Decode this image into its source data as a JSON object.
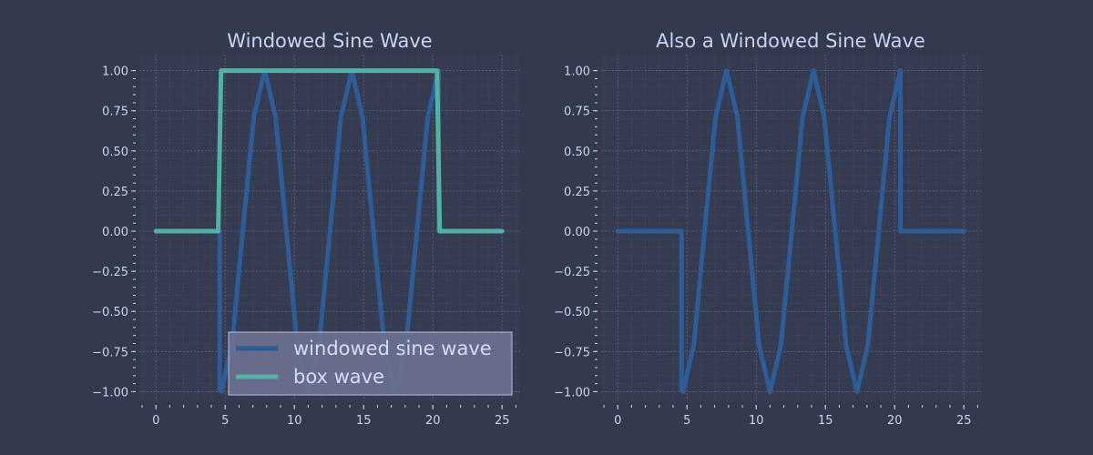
{
  "figure": {
    "background": "#343a4e",
    "plot_background": "#353b50"
  },
  "chart_data": [
    {
      "type": "line",
      "title": "Windowed Sine Wave",
      "xlabel": "",
      "ylabel": "",
      "xlim": [
        -1.2,
        26.3
      ],
      "ylim": [
        -1.06,
        1.1
      ],
      "xticks": [
        0,
        5,
        10,
        15,
        20,
        25
      ],
      "xtick_labels": [
        "0",
        "5",
        "10",
        "15",
        "20",
        "25"
      ],
      "yticks": [
        1.0,
        0.75,
        0.5,
        0.25,
        0.0,
        -0.25,
        -0.5,
        -0.75,
        -1.0
      ],
      "ytick_labels": [
        "1.00",
        "0.75",
        "0.50",
        "0.25",
        "0.00",
        "−0.25",
        "−0.50",
        "−0.75",
        "−1.00"
      ],
      "grid": true,
      "legend": "lower-right",
      "series": [
        {
          "name": "windowed sine wave",
          "color": "#2e5c97",
          "x": [
            0,
            4.6,
            4.6,
            4.7,
            5.49,
            6.27,
            7.06,
            7.85,
            8.64,
            9.42,
            10.21,
            11.0,
            11.78,
            12.57,
            13.35,
            14.14,
            14.92,
            15.71,
            16.49,
            17.28,
            18.06,
            18.85,
            19.63,
            20.42,
            20.42,
            25
          ],
          "y": [
            0,
            0,
            -0.99,
            -1.0,
            -0.71,
            0.0,
            0.71,
            1.0,
            0.71,
            0.0,
            -0.71,
            -1.0,
            -0.71,
            0.0,
            0.71,
            1.0,
            0.71,
            0.0,
            -0.71,
            -1.0,
            -0.71,
            0.0,
            0.71,
            1.0,
            0,
            0
          ]
        },
        {
          "name": "box wave",
          "color": "#4fb3a4",
          "x": [
            0,
            4.5,
            4.7,
            20.3,
            20.5,
            25
          ],
          "y": [
            0,
            0,
            1,
            1,
            0,
            0
          ]
        }
      ]
    },
    {
      "type": "line",
      "title": "Also a Windowed Sine Wave",
      "xlabel": "",
      "ylabel": "",
      "xlim": [
        -1.2,
        26.3
      ],
      "ylim": [
        -1.06,
        1.1
      ],
      "xticks": [
        0,
        5,
        10,
        15,
        20,
        25
      ],
      "xtick_labels": [
        "0",
        "5",
        "10",
        "15",
        "20",
        "25"
      ],
      "yticks": [
        1.0,
        0.75,
        0.5,
        0.25,
        0.0,
        -0.25,
        -0.5,
        -0.75,
        -1.0
      ],
      "ytick_labels": [
        "1.00",
        "0.75",
        "0.50",
        "0.25",
        "0.00",
        "−0.25",
        "−0.50",
        "−0.75",
        "−1.00"
      ],
      "grid": true,
      "series": [
        {
          "color": "#2e5c97",
          "x": [
            0,
            4.6,
            4.6,
            4.7,
            5.49,
            6.27,
            7.06,
            7.85,
            8.64,
            9.42,
            10.21,
            11.0,
            11.78,
            12.57,
            13.35,
            14.14,
            14.92,
            15.71,
            16.49,
            17.28,
            18.06,
            18.85,
            19.63,
            20.42,
            20.42,
            25
          ],
          "y": [
            0,
            0,
            -0.99,
            -1.0,
            -0.71,
            0.0,
            0.71,
            1.0,
            0.71,
            0.0,
            -0.71,
            -1.0,
            -0.71,
            0.0,
            0.71,
            1.0,
            0.71,
            0.0,
            -0.71,
            -1.0,
            -0.71,
            0.0,
            0.71,
            1.0,
            0,
            0
          ]
        }
      ]
    }
  ]
}
